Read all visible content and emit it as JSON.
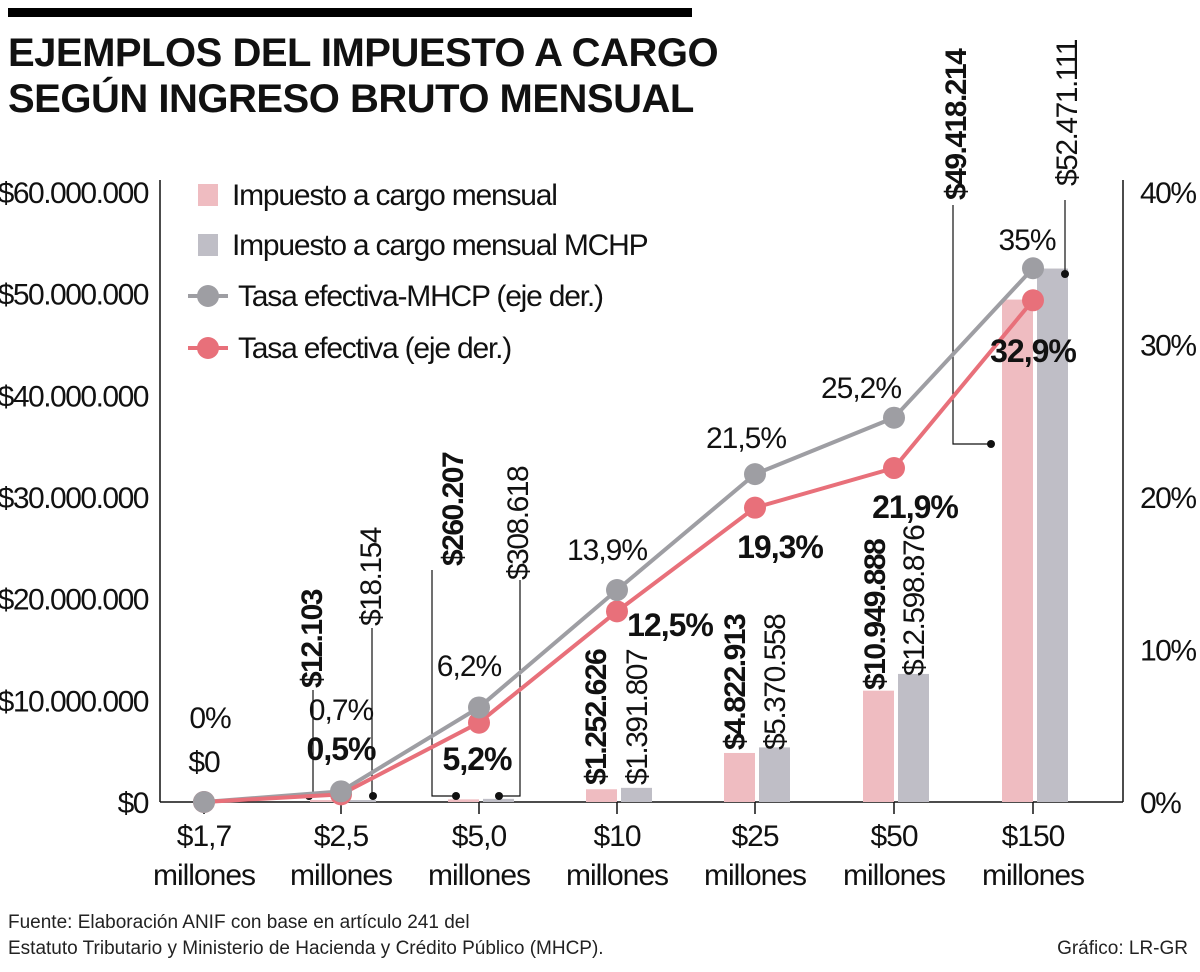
{
  "title": {
    "line1": "EJEMPLOS DEL IMPUESTO A CARGO",
    "line2": "SEGÚN INGRESO BRUTO MENSUAL"
  },
  "colors": {
    "pink": "#efbcc1",
    "gray": "#bfbec6",
    "pink_line": "#e8707a",
    "gray_line": "#9e9ea3"
  },
  "chart_data": {
    "type": "bar",
    "categories": [
      [
        "$1,7",
        "millones"
      ],
      [
        "$2,5",
        "millones"
      ],
      [
        "$5,0",
        "millones"
      ],
      [
        "$10",
        "millones"
      ],
      [
        "$25",
        "millones"
      ],
      [
        "$50",
        "millones"
      ],
      [
        "$150",
        "millones"
      ]
    ],
    "left_axis": {
      "range": [
        0,
        60000000
      ],
      "ticks": [
        {
          "value": 0,
          "label": "$0"
        },
        {
          "value": 10000000,
          "label": "$10.000.000"
        },
        {
          "value": 20000000,
          "label": "$20.000.000"
        },
        {
          "value": 30000000,
          "label": "$30.000.000"
        },
        {
          "value": 40000000,
          "label": "$40.000.000"
        },
        {
          "value": 50000000,
          "label": "$50.000.000"
        },
        {
          "value": 60000000,
          "label": "$60.000.000"
        }
      ]
    },
    "right_axis": {
      "range": [
        0,
        40
      ],
      "ticks": [
        {
          "value": 0,
          "label": "0%"
        },
        {
          "value": 10,
          "label": "10%"
        },
        {
          "value": 20,
          "label": "20%"
        },
        {
          "value": 30,
          "label": "30%"
        },
        {
          "value": 40,
          "label": "40%"
        }
      ]
    },
    "series": [
      {
        "name": "Impuesto a cargo mensual",
        "kind": "bar",
        "values": [
          0,
          12103,
          260207,
          1252626,
          4822913,
          10949888,
          49418214
        ],
        "labels": [
          "$0",
          "$12.103",
          "$260.207",
          "$1.252.626",
          "$4.822.913",
          "$10.949.888",
          "$49.418.214"
        ]
      },
      {
        "name": "Impuesto a cargo mensual MCHP",
        "kind": "bar",
        "values": [
          0,
          18154,
          308618,
          1391807,
          5370558,
          12598876,
          52471111
        ],
        "labels": [
          "",
          "$18.154",
          "$308.618",
          "$1.391.807",
          "$5.370.558",
          "$12.598.876",
          "$52.471.111"
        ]
      },
      {
        "name": "Tasa efectiva-MHCP (eje der.)",
        "kind": "line",
        "axis": "right",
        "values": [
          0,
          0.7,
          6.2,
          13.9,
          21.5,
          25.2,
          35
        ],
        "labels": [
          "0%",
          "0,7%",
          "6,2%",
          "13,9%",
          "21,5%",
          "25,2%",
          "35%"
        ]
      },
      {
        "name": "Tasa efectiva (eje der.)",
        "kind": "line",
        "axis": "right",
        "values": [
          0,
          0.5,
          5.2,
          12.5,
          19.3,
          21.9,
          32.9
        ],
        "labels": [
          "",
          "0,5%",
          "5,2%",
          "12,5%",
          "19,3%",
          "21,9%",
          "32,9%"
        ]
      }
    ]
  },
  "footer": {
    "source_line1": "Fuente: Elaboración ANIF con base en artículo 241 del",
    "source_line2": "Estatuto Tributario y Ministerio de Hacienda y Crédito Público (MHCP).",
    "credit": "Gráfico: LR-GR"
  }
}
